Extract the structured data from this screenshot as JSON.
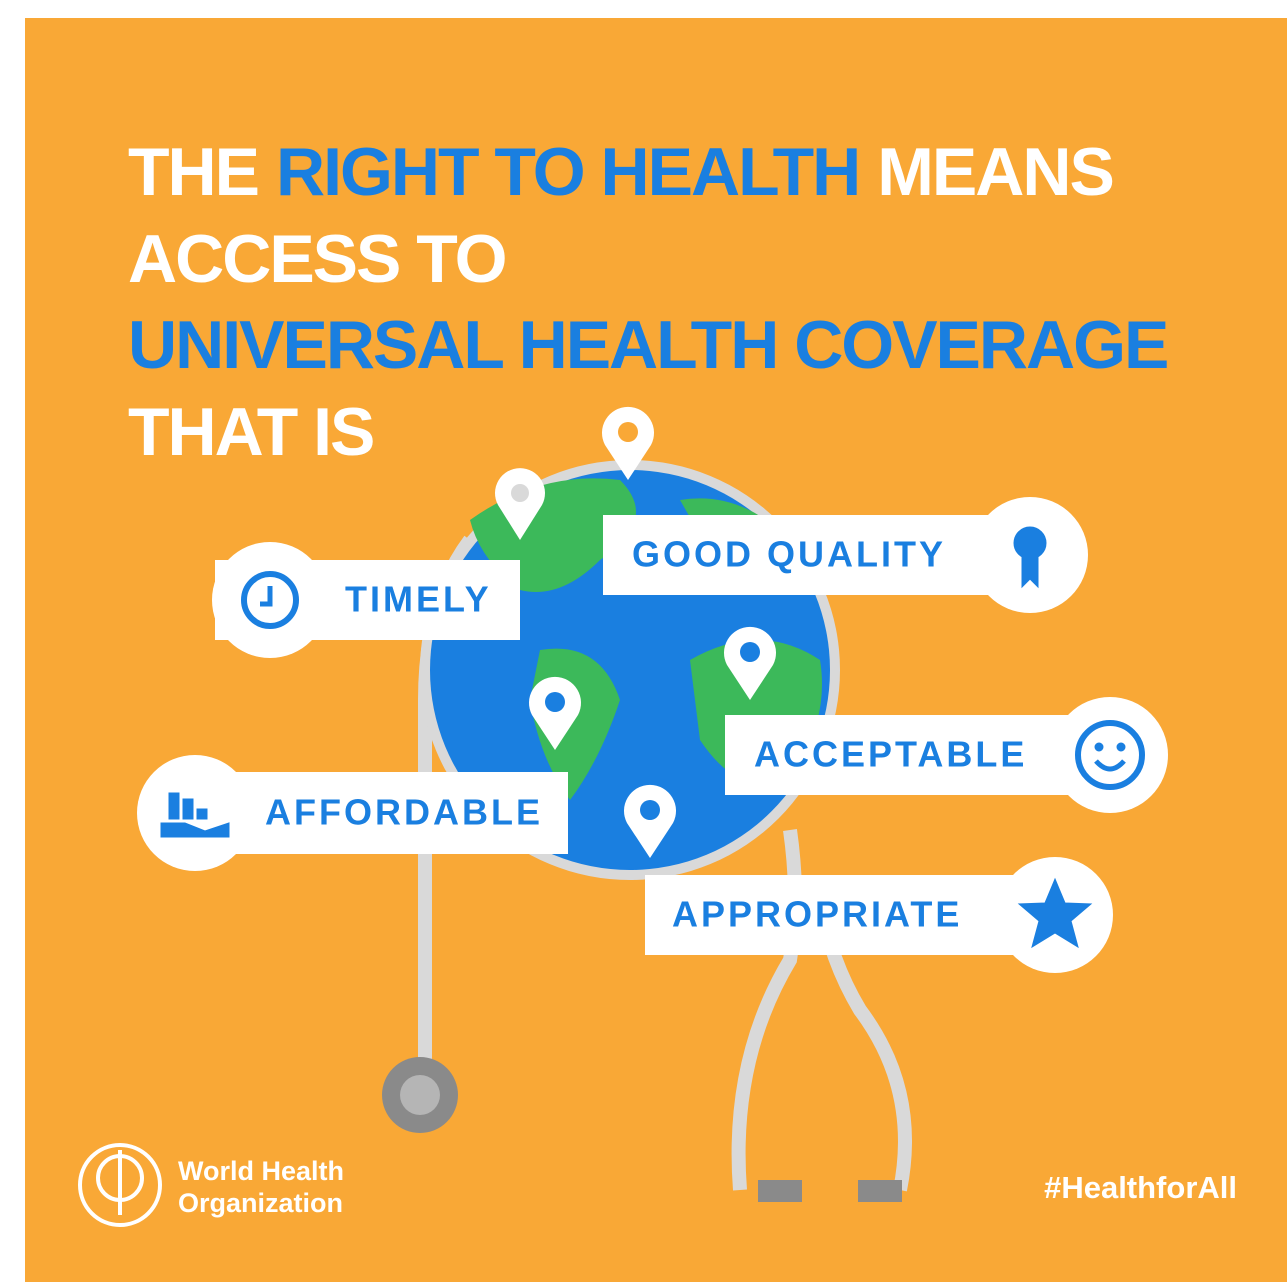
{
  "headline": {
    "lines": [
      [
        {
          "text": "THE",
          "color": "#ffffff"
        },
        {
          "text": "RIGHT TO HEALTH",
          "color": "#1a7fe0"
        },
        {
          "text": "MEANS",
          "color": "#ffffff"
        }
      ],
      [
        {
          "text": "ACCESS TO",
          "color": "#ffffff"
        }
      ],
      [
        {
          "text": "UNIVERSAL HEALTH COVERAGE",
          "color": "#1a7fe0"
        }
      ],
      [
        {
          "text": "THAT IS",
          "color": "#ffffff"
        }
      ]
    ]
  },
  "labels": [
    {
      "text": "TIMELY"
    },
    {
      "text": "GOOD QUALITY"
    },
    {
      "text": "ACCEPTABLE"
    },
    {
      "text": "AFFORDABLE"
    },
    {
      "text": "APPROPRIATE"
    }
  ],
  "logo": {
    "line1": "World Health",
    "line2": "Organization"
  },
  "hashtag": "#HealthforAll"
}
